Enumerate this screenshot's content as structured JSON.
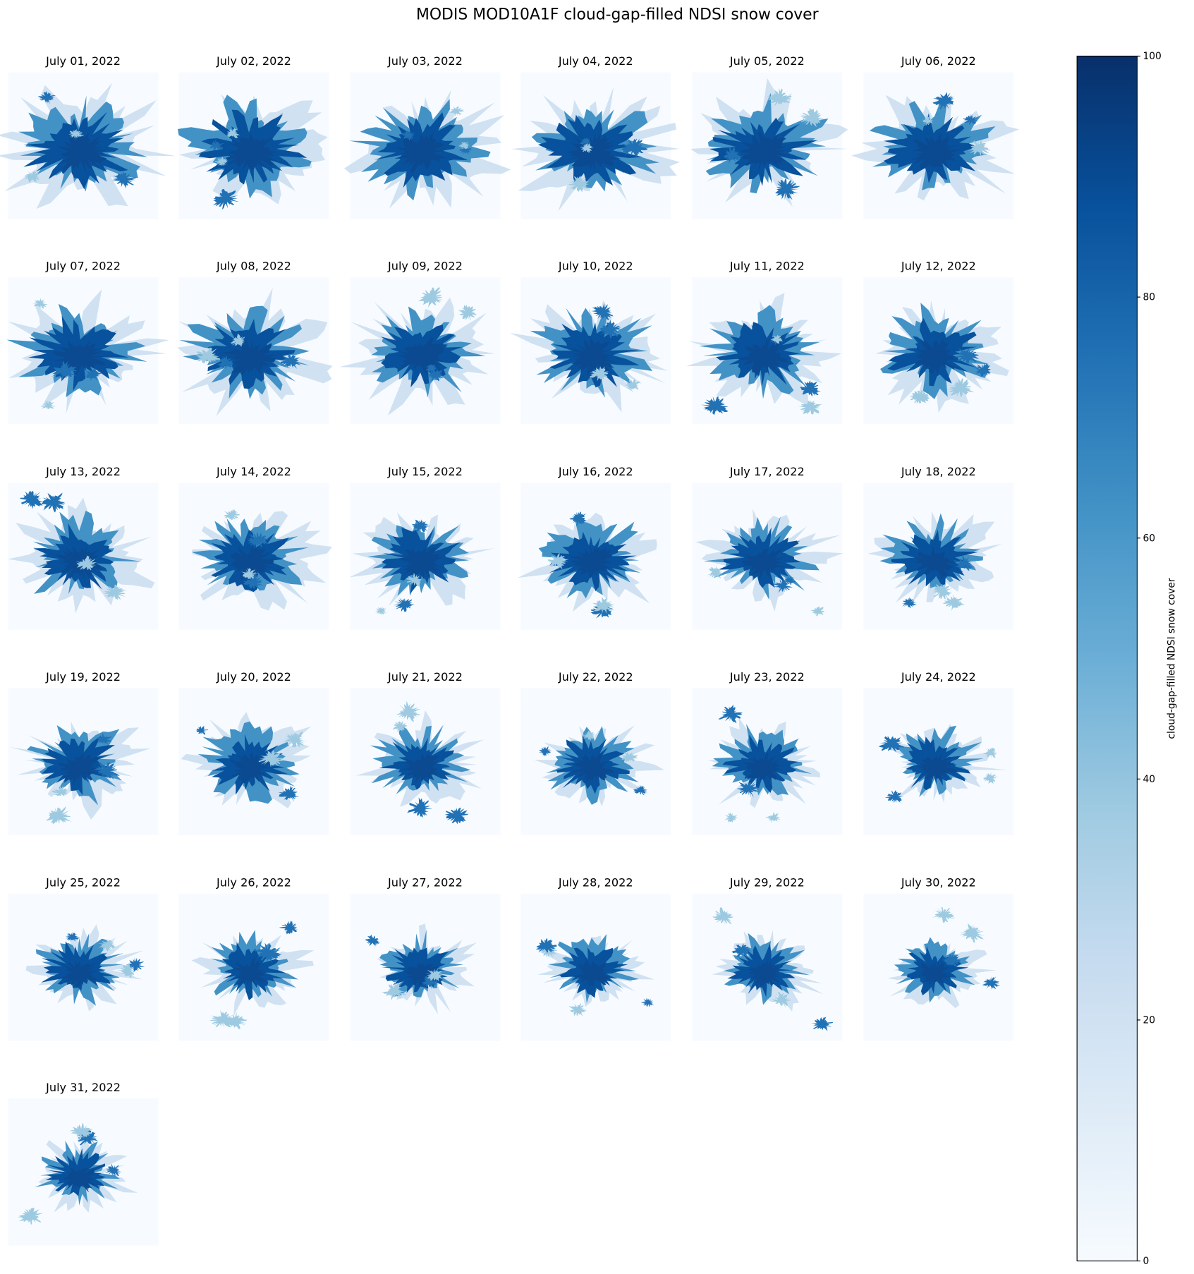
{
  "chart_data": {
    "type": "image-grid",
    "title": "MODIS MOD10A1F cloud-gap-filled NDSI snow cover",
    "panels": [
      "July 01, 2022",
      "July 02, 2022",
      "July 03, 2022",
      "July 04, 2022",
      "July 05, 2022",
      "July 06, 2022",
      "July 07, 2022",
      "July 08, 2022",
      "July 09, 2022",
      "July 10, 2022",
      "July 11, 2022",
      "July 12, 2022",
      "July 13, 2022",
      "July 14, 2022",
      "July 15, 2022",
      "July 16, 2022",
      "July 17, 2022",
      "July 18, 2022",
      "July 19, 2022",
      "July 20, 2022",
      "July 21, 2022",
      "July 22, 2022",
      "July 23, 2022",
      "July 24, 2022",
      "July 25, 2022",
      "July 26, 2022",
      "July 27, 2022",
      "July 28, 2022",
      "July 29, 2022",
      "July 30, 2022",
      "July 31, 2022"
    ],
    "colorbar": {
      "label": "cloud-gap-filled NDSI snow cover",
      "colormap": "Blues",
      "lim": [
        0,
        100
      ],
      "ticks": [
        0,
        20,
        40,
        60,
        80,
        100
      ]
    }
  }
}
